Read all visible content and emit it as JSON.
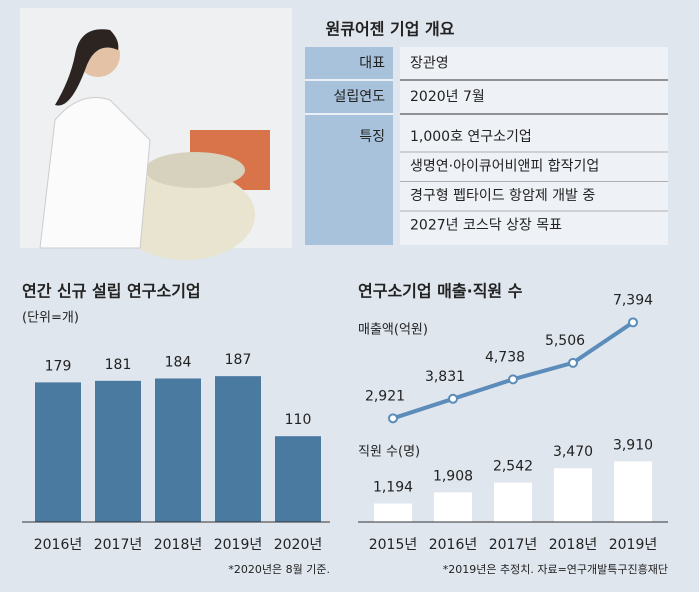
{
  "overview": {
    "title": "원큐어젠 기업 개요",
    "rows": [
      [
        "대표",
        "장관영"
      ],
      [
        "설립연도",
        "2020년 7월"
      ],
      [
        "특징",
        "1,000호 연구소기업",
        "생명연·아이큐어비앤피 합작기업",
        "경구형 펩타이드 항암제 개발 중",
        "2027년 코스닥 상장 목표"
      ]
    ]
  },
  "chart_data": [
    {
      "type": "bar",
      "title": "연간 신규 설립 연구소기업",
      "subtitle": "(단위=개)",
      "categories": [
        "2016년",
        "2017년",
        "2018년",
        "2019년",
        "2020년"
      ],
      "values": [
        179,
        181,
        184,
        187,
        110
      ],
      "color": "#4b7aa1",
      "note": "*2020년은 8월 기준."
    },
    {
      "type": "combo",
      "title": "연구소기업 매출·직원 수",
      "categories": [
        "2015년",
        "2016년",
        "2017년",
        "2018년",
        "2019년"
      ],
      "series": [
        {
          "name": "매출액(억원)",
          "type": "line",
          "color": "#5b8cba",
          "values": [
            2921,
            3831,
            4738,
            5506,
            7394
          ],
          "value_labels": [
            "2,921",
            "3,831",
            "4,738",
            "5,506",
            "7,394"
          ]
        },
        {
          "name": "직원 수(명)",
          "type": "bar",
          "color": "#ffffff",
          "values": [
            1194,
            1908,
            2542,
            3470,
            3910
          ],
          "value_labels": [
            "1,194",
            "1,908",
            "2,542",
            "3,470",
            "3,910"
          ]
        }
      ],
      "note": "*2019년은 추정치. 자료=연구개발특구진흥재단"
    }
  ]
}
